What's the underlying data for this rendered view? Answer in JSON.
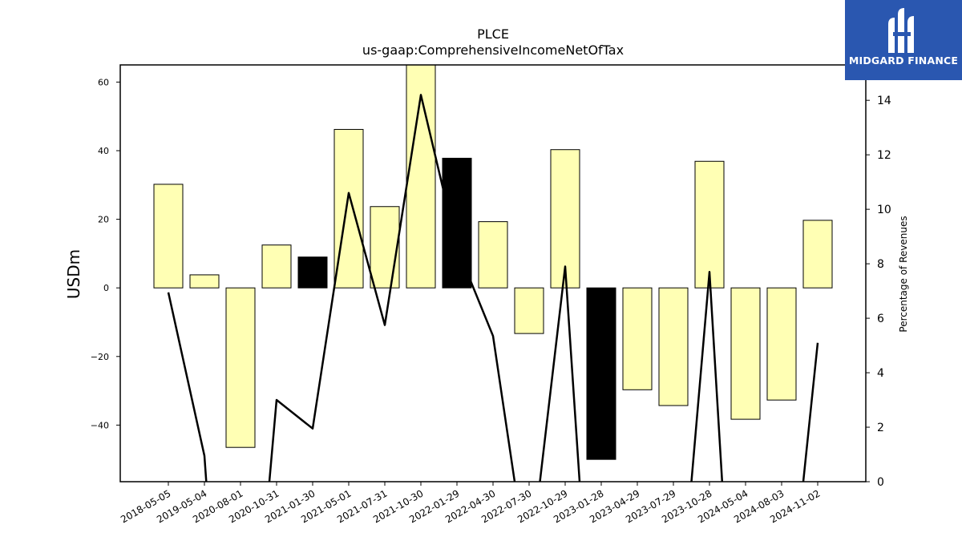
{
  "chart_data": {
    "type": "bar",
    "title": "PLCE",
    "subtitle": "us-gaap:ComprehensiveIncomeNetOfTax",
    "ylabel": "USDm",
    "y2label": "Percentage of Revenues",
    "categories": [
      "2018-05-05",
      "2019-05-04",
      "2020-08-01",
      "2020-10-31",
      "2021-01-30",
      "2021-05-01",
      "2021-07-31",
      "2021-10-30",
      "2022-01-29",
      "2022-04-30",
      "2022-07-30",
      "2022-10-29",
      "2023-01-28",
      "2023-04-29",
      "2023-07-29",
      "2023-10-28",
      "2024-05-04",
      "2024-08-03",
      "2024-11-02"
    ],
    "values": [
      30.2,
      3.8,
      -46.5,
      12.5,
      9.0,
      46.2,
      23.7,
      66.0,
      37.8,
      19.3,
      -13.3,
      40.3,
      -50.0,
      -29.7,
      -34.3,
      36.9,
      -38.3,
      -32.7,
      19.7
    ],
    "bar_colors": [
      "#ffffb4",
      "#ffffb4",
      "#ffffb4",
      "#ffffb4",
      "#000000",
      "#ffffb4",
      "#ffffb4",
      "#ffffb4",
      "#000000",
      "#ffffb4",
      "#ffffb4",
      "#ffffb4",
      "#000000",
      "#ffffb4",
      "#ffffb4",
      "#ffffb4",
      "#ffffb4",
      "#ffffb4",
      "#ffffb4"
    ],
    "line_segments": [
      [
        [
          0,
          6.95
        ],
        [
          1,
          0.95
        ],
        [
          1.05,
          0.0
        ]
      ],
      [
        [
          2.8,
          0.0
        ],
        [
          3,
          3.0
        ],
        [
          4,
          1.95
        ],
        [
          5,
          10.6
        ],
        [
          6,
          5.75
        ],
        [
          7,
          14.2
        ],
        [
          8,
          8.6
        ],
        [
          9,
          5.35
        ],
        [
          9.6,
          0.0
        ]
      ],
      [
        [
          10.3,
          0.0
        ],
        [
          11,
          7.9
        ],
        [
          11.4,
          0.0
        ]
      ],
      [
        [
          14.5,
          0.0
        ],
        [
          15,
          7.7
        ],
        [
          15.35,
          0.0
        ]
      ],
      [
        [
          17.6,
          0.0
        ],
        [
          18,
          5.1
        ]
      ]
    ],
    "ylim": [
      -56.5,
      65
    ],
    "y2lim": [
      0,
      15.3
    ],
    "yticks": [
      -40,
      -20,
      0,
      20,
      40,
      60
    ],
    "y2ticks": [
      0,
      2,
      4,
      6,
      8,
      10,
      12,
      14
    ],
    "colors": {
      "positive_bar": "#ffffb4",
      "highlight_bar": "#000000",
      "line": "#000000"
    }
  },
  "logo": {
    "text": "MIDGARD FINANCE",
    "background": "#2a57b0"
  }
}
